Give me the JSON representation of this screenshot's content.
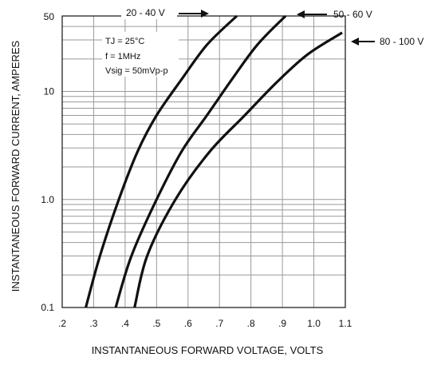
{
  "chart_data": {
    "type": "line",
    "ylabel": "INSTANTANEOUS FORWARD CURRENT, AMPERES",
    "xlabel": "INSTANTANEOUS FORWARD VOLTAGE, VOLTS",
    "x_tick_labels": [
      ".2",
      ".3",
      ".4",
      ".5",
      ".6",
      ".7",
      ".8",
      ".9",
      "1.0",
      "1.1"
    ],
    "y_tick_labels": [
      "0.1",
      "1.0",
      "10",
      "50"
    ],
    "xlim": [
      0.2,
      1.1
    ],
    "ylim": [
      0.1,
      50
    ],
    "y_scale": "log",
    "grid": true,
    "conditions": [
      "TJ = 25°C",
      "f = 1MHz",
      "Vsig = 50mVp-p"
    ],
    "series": [
      {
        "name": "20 - 40 V",
        "x": [
          0.275,
          0.32,
          0.38,
          0.44,
          0.5,
          0.58,
          0.66,
          0.755
        ],
        "y": [
          0.1,
          0.3,
          1.0,
          2.8,
          6.0,
          13.0,
          27.0,
          50.0
        ]
      },
      {
        "name": "50 - 60 V",
        "x": [
          0.37,
          0.42,
          0.5,
          0.58,
          0.66,
          0.74,
          0.82,
          0.91
        ],
        "y": [
          0.1,
          0.3,
          1.0,
          2.8,
          6.0,
          13.0,
          27.0,
          50.0
        ]
      },
      {
        "name": "80 - 100 V",
        "x": [
          0.43,
          0.47,
          0.56,
          0.67,
          0.78,
          0.88,
          0.98,
          1.09
        ],
        "y": [
          0.1,
          0.3,
          1.0,
          2.8,
          6.0,
          12.0,
          22.0,
          35.0
        ]
      }
    ]
  },
  "colors": {
    "curve": "#111111",
    "grid": "#9a9a9a",
    "background": "#ffffff"
  }
}
